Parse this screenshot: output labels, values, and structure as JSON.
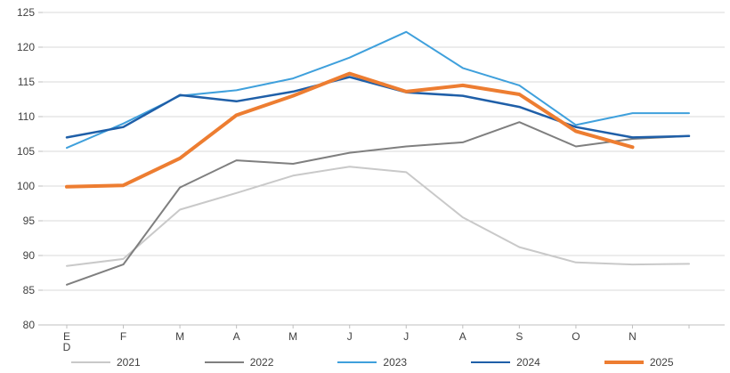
{
  "chart_data": {
    "type": "line",
    "title": "",
    "xlabel": "",
    "ylabel": "",
    "ylim": [
      80,
      125
    ],
    "ytick_step": 5,
    "grid": true,
    "legend_position": "bottom",
    "x_labels": [
      "E",
      "F",
      "M",
      "A",
      "M",
      "J",
      "J",
      "A",
      "S",
      "O",
      "N",
      ""
    ],
    "first_tick_second_line": "D",
    "series": [
      {
        "name": "2021",
        "color": "#c9c9c9",
        "width": 2,
        "values": [
          88.5,
          89.5,
          96.6,
          99.0,
          101.5,
          102.8,
          102.0,
          95.5,
          91.2,
          89.0,
          88.7,
          88.8
        ]
      },
      {
        "name": "2022",
        "color": "#7f7f7f",
        "width": 2,
        "values": [
          85.8,
          88.7,
          99.8,
          103.7,
          103.2,
          104.8,
          105.7,
          106.3,
          109.2,
          105.7,
          106.8,
          107.2
        ]
      },
      {
        "name": "2023",
        "color": "#3fa0dc",
        "width": 2,
        "values": [
          105.5,
          109.0,
          113.0,
          113.8,
          115.5,
          118.5,
          122.2,
          117.0,
          114.5,
          108.8,
          110.5,
          110.5
        ]
      },
      {
        "name": "2024",
        "color": "#1f5fa8",
        "width": 2.5,
        "values": [
          107.0,
          108.5,
          113.1,
          112.2,
          113.6,
          115.7,
          113.5,
          113.0,
          111.4,
          108.5,
          107.0,
          107.2
        ]
      },
      {
        "name": "2025",
        "color": "#ed7d31",
        "width": 4,
        "values": [
          99.9,
          100.1,
          104.0,
          110.2,
          113.0,
          116.2,
          113.6,
          114.5,
          113.2,
          107.9,
          105.6,
          null
        ]
      }
    ]
  }
}
